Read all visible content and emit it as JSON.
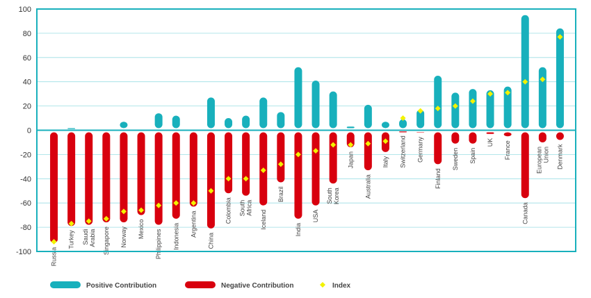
{
  "chart_data": {
    "type": "bar",
    "categories": [
      "Russia",
      "Turkey",
      "Saudi Arabia",
      "Singapore",
      "Norway",
      "Mexico",
      "Philippines",
      "Indonesia",
      "Argentina",
      "China",
      "Colombia",
      "South Africa",
      "Iceland",
      "Brazil",
      "India",
      "USA",
      "South Korea",
      "Japan",
      "Australia",
      "Italy",
      "Switzerland",
      "Germany",
      "Finland",
      "Sweden",
      "Spain",
      "UK",
      "France",
      "Canada",
      "European Union",
      "Denmark"
    ],
    "series": [
      {
        "name": "Positive Contribution",
        "type": "bar",
        "color": "#18b0bc",
        "values": [
          0,
          1,
          0,
          0,
          7,
          0,
          14,
          12,
          0,
          27,
          10,
          12,
          27,
          15,
          52,
          41,
          32,
          3,
          21,
          7,
          9,
          17,
          45,
          31,
          34,
          33,
          36,
          95,
          52,
          84
        ]
      },
      {
        "name": "Negative Contribution",
        "type": "bar",
        "color": "#d8000e",
        "values": [
          -93,
          -79,
          -78,
          -76,
          -76,
          -70,
          -78,
          -73,
          -63,
          -81,
          -52,
          -54,
          -62,
          -43,
          -73,
          -62,
          -44,
          -14,
          -33,
          -18,
          -1,
          -2,
          -28,
          -11,
          -11,
          -3,
          -5,
          -56,
          -10,
          -8
        ]
      },
      {
        "name": "Index",
        "type": "marker",
        "color": "#f2f200",
        "values": [
          -92,
          -77,
          -75,
          -73,
          -67,
          -66,
          -62,
          -60,
          -60,
          -50,
          -40,
          -40,
          -33,
          -28,
          -20,
          -17,
          -12,
          -12,
          -11,
          -9,
          10,
          16,
          18,
          20,
          24,
          30,
          31,
          40,
          42,
          77
        ]
      }
    ],
    "ylim": [
      -100,
      100
    ],
    "yticks": [
      100,
      80,
      60,
      40,
      20,
      0,
      -20,
      -40,
      -60,
      -80,
      -100
    ],
    "ytick_labels": [
      "100",
      "80",
      "60",
      "40",
      "20",
      "0",
      "-20",
      "-40",
      "-60",
      "-80",
      "-100"
    ],
    "grid": true,
    "legend_position": "bottom",
    "xlabel": "",
    "ylabel": ""
  },
  "colors": {
    "positive": "#18b0bc",
    "negative": "#d8000e",
    "index": "#f2f200",
    "frame": "#18b0bc",
    "grid": "#9adde3"
  }
}
